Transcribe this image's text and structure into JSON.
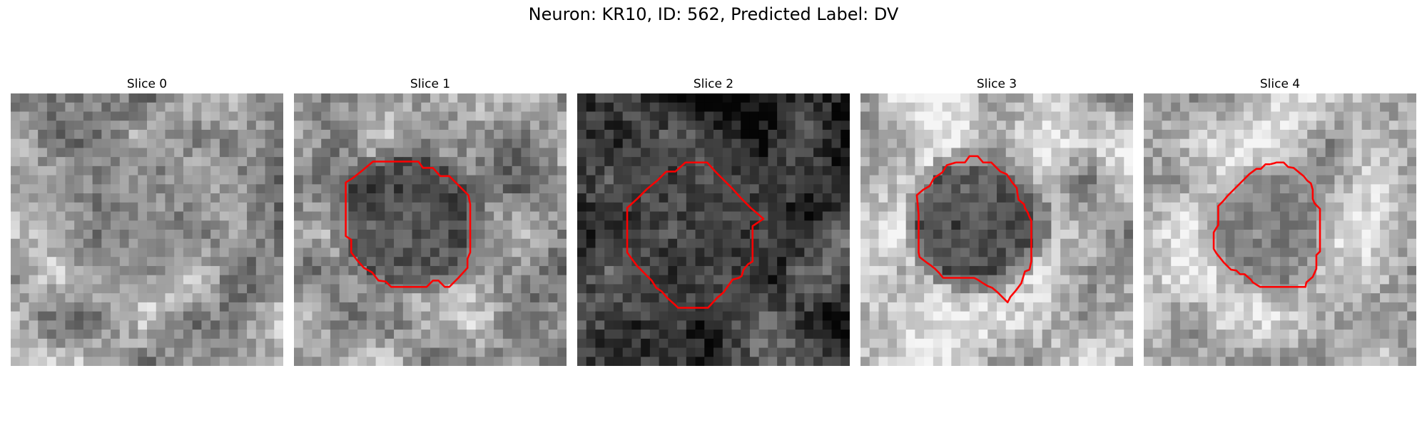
{
  "figure": {
    "title": "Neuron: KR10, ID: 562, Predicted Label: DV"
  },
  "contour_color": "#ff0000",
  "panels": [
    {
      "title": "Slice 0",
      "contour": []
    },
    {
      "title": "Slice 1",
      "contour": [
        [
          7.5,
          8.5
        ],
        [
          8.7,
          7.5
        ],
        [
          13.7,
          7.5
        ],
        [
          14.2,
          8.2
        ],
        [
          15.3,
          8.2
        ],
        [
          16.1,
          9.1
        ],
        [
          17.1,
          9.1
        ],
        [
          18.2,
          10.2
        ],
        [
          19.2,
          11.2
        ],
        [
          19.4,
          12.2
        ],
        [
          19.4,
          17.5
        ],
        [
          19.1,
          18.2
        ],
        [
          19.1,
          19.2
        ],
        [
          18.1,
          20.3
        ],
        [
          17.1,
          21.3
        ],
        [
          16.6,
          21.3
        ],
        [
          15.9,
          20.6
        ],
        [
          15.3,
          20.6
        ],
        [
          14.6,
          21.3
        ],
        [
          10.7,
          21.3
        ],
        [
          10.1,
          20.7
        ],
        [
          9.3,
          20.6
        ],
        [
          8.6,
          19.7
        ],
        [
          7.7,
          19.2
        ],
        [
          6.9,
          18.3
        ],
        [
          6.3,
          17.5
        ],
        [
          6.3,
          16.1
        ],
        [
          5.7,
          15.7
        ],
        [
          5.7,
          9.8
        ],
        [
          6.5,
          9.3
        ],
        [
          7.5,
          8.5
        ]
      ]
    },
    {
      "title": "Slice 2",
      "contour": [
        [
          9.8,
          8.6
        ],
        [
          10.8,
          8.6
        ],
        [
          11.9,
          7.6
        ],
        [
          14.3,
          7.6
        ],
        [
          15.2,
          8.6
        ],
        [
          16.1,
          9.5
        ],
        [
          17.1,
          10.5
        ],
        [
          18.1,
          11.6
        ],
        [
          19.1,
          12.6
        ],
        [
          20.5,
          13.8
        ],
        [
          19.3,
          14.6
        ],
        [
          19.3,
          18.5
        ],
        [
          18.8,
          18.8
        ],
        [
          18.3,
          19.4
        ],
        [
          18.1,
          20.1
        ],
        [
          17.8,
          20.3
        ],
        [
          17.1,
          20.5
        ],
        [
          16.6,
          21.2
        ],
        [
          16.1,
          21.9
        ],
        [
          15.4,
          22.5
        ],
        [
          14.4,
          23.6
        ],
        [
          11.1,
          23.6
        ],
        [
          10.8,
          23.3
        ],
        [
          9.9,
          22.5
        ],
        [
          9.3,
          21.8
        ],
        [
          8.7,
          21.4
        ],
        [
          8.2,
          20.6
        ],
        [
          7.4,
          19.8
        ],
        [
          6.6,
          19.0
        ],
        [
          6.0,
          18.2
        ],
        [
          5.5,
          17.5
        ],
        [
          5.5,
          15.0
        ],
        [
          5.5,
          12.6
        ],
        [
          6.6,
          11.6
        ],
        [
          7.7,
          10.5
        ],
        [
          8.8,
          9.6
        ],
        [
          9.8,
          8.6
        ]
      ]
    },
    {
      "title": "Slice 3",
      "contour": [
        [
          10.5,
          7.6
        ],
        [
          11.5,
          7.6
        ],
        [
          12.0,
          6.9
        ],
        [
          12.9,
          6.9
        ],
        [
          13.5,
          7.6
        ],
        [
          14.4,
          7.6
        ],
        [
          15.4,
          8.6
        ],
        [
          16.1,
          8.9
        ],
        [
          16.7,
          9.8
        ],
        [
          17.2,
          10.4
        ],
        [
          17.3,
          11.2
        ],
        [
          17.4,
          11.7
        ],
        [
          18.0,
          12.2
        ],
        [
          18.1,
          12.6
        ],
        [
          18.4,
          13.1
        ],
        [
          18.6,
          13.6
        ],
        [
          18.8,
          14.0
        ],
        [
          18.8,
          15.0
        ],
        [
          18.8,
          17.1
        ],
        [
          18.8,
          18.5
        ],
        [
          18.6,
          19.4
        ],
        [
          18.1,
          19.6
        ],
        [
          17.7,
          20.9
        ],
        [
          17.1,
          21.7
        ],
        [
          16.5,
          22.4
        ],
        [
          16.2,
          23.0
        ],
        [
          15.3,
          22.1
        ],
        [
          15.1,
          21.9
        ],
        [
          14.5,
          21.4
        ],
        [
          14.0,
          21.2
        ],
        [
          13.5,
          20.9
        ],
        [
          12.9,
          20.5
        ],
        [
          12.5,
          20.3
        ],
        [
          11.6,
          20.3
        ],
        [
          10.7,
          20.3
        ],
        [
          9.6,
          20.3
        ],
        [
          9.1,
          20.3
        ],
        [
          8.6,
          19.7
        ],
        [
          8.2,
          19.3
        ],
        [
          7.7,
          18.9
        ],
        [
          7.4,
          18.7
        ],
        [
          7.0,
          18.4
        ],
        [
          6.5,
          18.0
        ],
        [
          6.4,
          17.5
        ],
        [
          6.4,
          15.6
        ],
        [
          6.4,
          13.3
        ],
        [
          6.2,
          11.2
        ],
        [
          6.9,
          10.6
        ],
        [
          7.6,
          10.2
        ],
        [
          8.1,
          9.3
        ],
        [
          9.0,
          8.7
        ],
        [
          9.5,
          7.9
        ],
        [
          10.5,
          7.6
        ]
      ]
    },
    {
      "title": "Slice 4",
      "contour": [
        [
          13.9,
          7.8
        ],
        [
          14.3,
          7.7
        ],
        [
          14.6,
          7.6
        ],
        [
          15.4,
          7.6
        ],
        [
          15.9,
          8.1
        ],
        [
          16.5,
          8.2
        ],
        [
          17.1,
          8.7
        ],
        [
          17.6,
          9.1
        ],
        [
          18.0,
          9.6
        ],
        [
          18.4,
          9.9
        ],
        [
          18.6,
          10.6
        ],
        [
          18.6,
          11.6
        ],
        [
          18.8,
          12.1
        ],
        [
          19.4,
          12.7
        ],
        [
          19.4,
          15.0
        ],
        [
          19.4,
          17.4
        ],
        [
          19.0,
          17.8
        ],
        [
          19.0,
          19.3
        ],
        [
          18.6,
          20.2
        ],
        [
          17.9,
          20.8
        ],
        [
          17.8,
          21.3
        ],
        [
          16.6,
          21.3
        ],
        [
          14.6,
          21.3
        ],
        [
          12.8,
          21.3
        ],
        [
          12.0,
          20.8
        ],
        [
          11.8,
          20.5
        ],
        [
          11.1,
          19.9
        ],
        [
          10.6,
          19.9
        ],
        [
          10.2,
          19.5
        ],
        [
          9.6,
          19.4
        ],
        [
          9.1,
          18.9
        ],
        [
          8.8,
          18.6
        ],
        [
          8.4,
          18.1
        ],
        [
          8.0,
          17.6
        ],
        [
          7.7,
          17.1
        ],
        [
          7.7,
          15.6
        ],
        [
          7.7,
          15.3
        ],
        [
          8.0,
          14.8
        ],
        [
          8.2,
          14.5
        ],
        [
          8.2,
          12.4
        ],
        [
          8.7,
          11.9
        ],
        [
          9.2,
          11.3
        ],
        [
          9.7,
          10.8
        ],
        [
          10.4,
          10.1
        ],
        [
          11.0,
          9.5
        ],
        [
          11.6,
          8.9
        ],
        [
          12.4,
          8.3
        ],
        [
          12.9,
          8.3
        ],
        [
          13.4,
          7.8
        ],
        [
          13.9,
          7.8
        ]
      ]
    }
  ]
}
